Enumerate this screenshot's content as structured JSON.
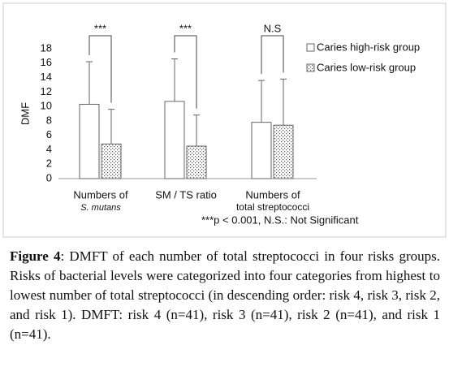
{
  "chart_data": {
    "type": "bar",
    "ylabel": "DMF",
    "categories": [
      [
        "Numbers  of",
        "S. mutans"
      ],
      [
        "SM / TS ratio"
      ],
      [
        "Numbers  of",
        "total streptococci"
      ]
    ],
    "series": [
      {
        "name": "Caries high-risk group",
        "color": "#ffffff",
        "pattern": "none",
        "values": [
          10.3,
          10.7,
          7.8
        ],
        "errors": [
          5.9,
          5.9,
          5.8
        ]
      },
      {
        "name": "Caries low-risk group",
        "color": "#ffffff",
        "pattern": "dots",
        "values": [
          4.8,
          4.5,
          7.4
        ],
        "errors": [
          4.8,
          4.3,
          6.4
        ]
      }
    ],
    "significance": [
      "***",
      "***",
      "N.S"
    ],
    "footnote": "***p < 0.001, N.S.: Not Significant",
    "ylim": [
      0,
      18
    ],
    "yticks": [
      0,
      2,
      4,
      6,
      8,
      10,
      12,
      14,
      16,
      18
    ],
    "grid": false
  },
  "caption": {
    "label": "Figure 4",
    "text": ": DMFT of each number of total streptococci in four risks groups. Risks of bacterial levels were categorized into four categories from highest to lowest number of total streptococci (in descending order: risk 4, risk 3, risk 2, and risk 1). DMFT: risk 4 (n=41), risk 3 (n=41), risk 2 (n=41), and risk 1 (n=41)."
  }
}
